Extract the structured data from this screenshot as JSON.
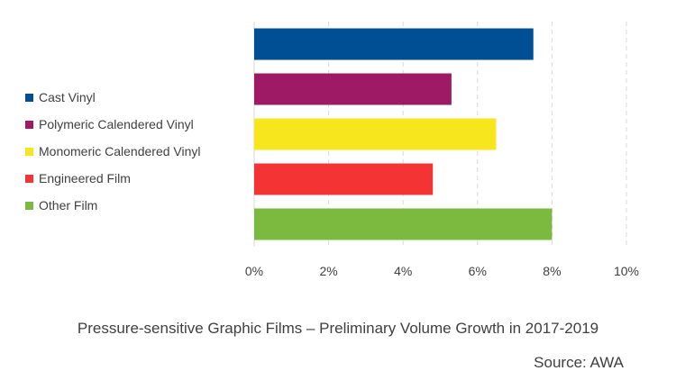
{
  "chart_data": {
    "type": "bar",
    "orientation": "horizontal",
    "title": "Pressure-sensitive Graphic Films – Preliminary Volume Growth in 2017-2019",
    "source": "Source: AWA",
    "xlim": [
      0,
      10
    ],
    "xticks": [
      "0%",
      "2%",
      "4%",
      "6%",
      "8%",
      "10%"
    ],
    "grid": "vertical-dashed",
    "legend_position": "left",
    "series": [
      {
        "name": "Cast Vinyl",
        "value": 7.5,
        "color": "#004F95"
      },
      {
        "name": "Polymeric Calendered Vinyl",
        "value": 5.3,
        "color": "#9E1A64"
      },
      {
        "name": "Monomeric Calendered Vinyl",
        "value": 6.5,
        "color": "#F7E61E"
      },
      {
        "name": "Engineered Film",
        "value": 4.8,
        "color": "#F43434"
      },
      {
        "name": "Other Film",
        "value": 8.0,
        "color": "#7CBA3F"
      }
    ]
  }
}
